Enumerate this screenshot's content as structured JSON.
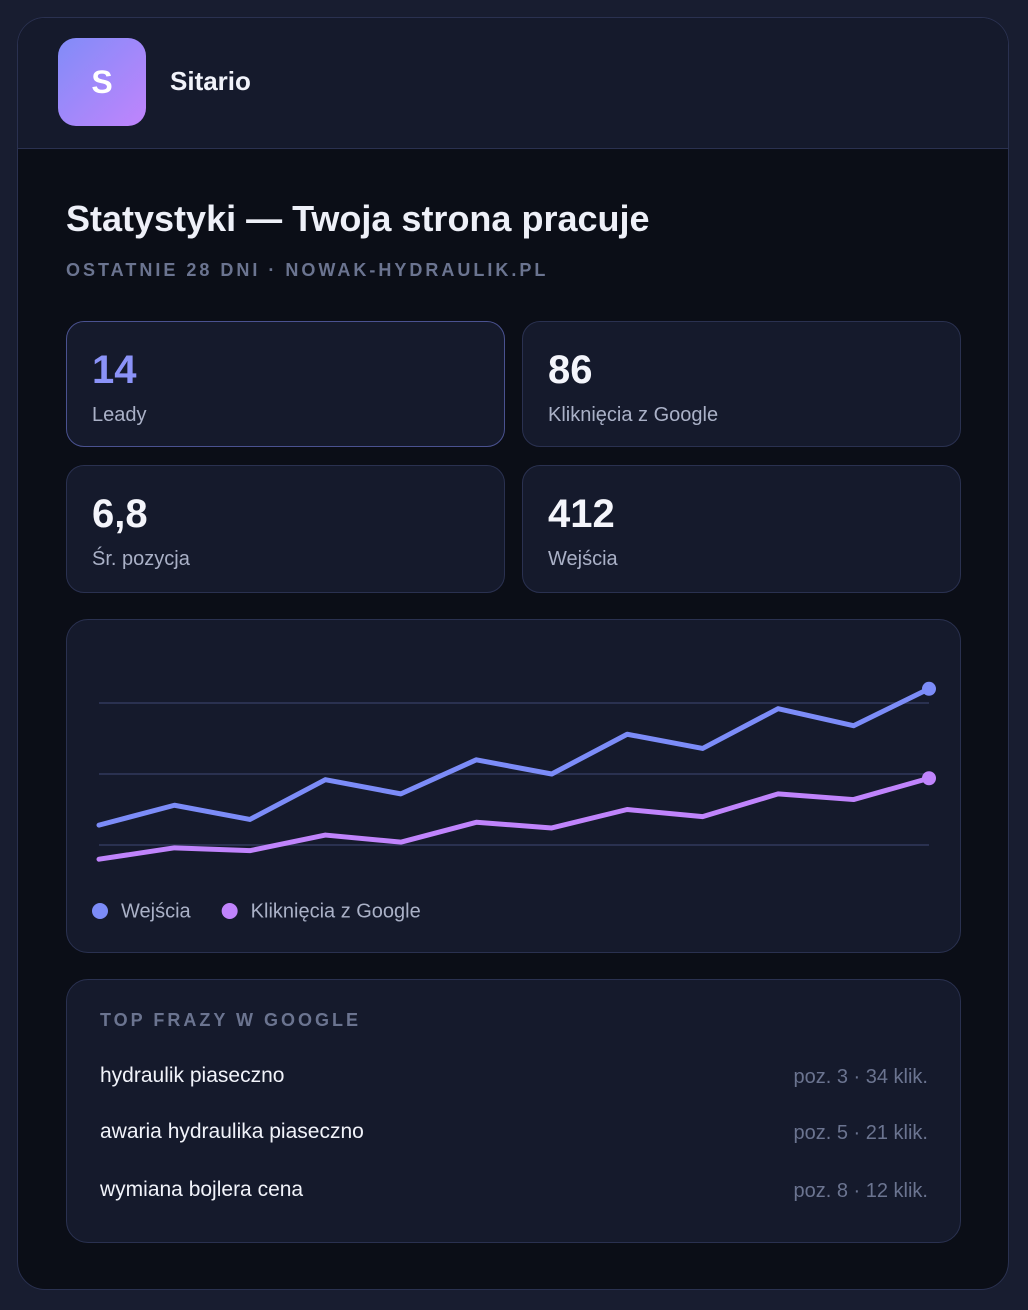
{
  "header": {
    "logo": "S",
    "brand": "Sitario"
  },
  "title": "Statystyki — Twoja strona pracuje",
  "subtitle": "OSTATNIE 28 DNI · NOWAK-HYDRAULIK.PL",
  "stats": [
    {
      "value": "14",
      "label": "Leady"
    },
    {
      "value": "86",
      "label": "Kliknięcia z Google"
    },
    {
      "value": "6,8",
      "label": "Śr. pozycja"
    },
    {
      "value": "412",
      "label": "Wejścia"
    }
  ],
  "chart_data": {
    "type": "line",
    "categories": [
      null,
      null,
      null,
      null,
      null,
      null,
      null,
      null,
      null,
      null,
      null,
      null
    ],
    "series": [
      {
        "name": "Wejścia",
        "color": "#7c8cf8",
        "values": [
          32,
          39,
          34,
          48,
          43,
          55,
          50,
          64,
          59,
          73,
          67,
          80
        ]
      },
      {
        "name": "Kliknięcia z Google",
        "color": "#c084fc",
        "values": [
          20,
          24,
          23,
          28.5,
          26,
          33,
          31,
          37.5,
          35,
          43,
          41,
          48.5
        ]
      }
    ],
    "ylim": [
      0,
      100
    ],
    "yticks": [
      25,
      50,
      75
    ],
    "grid": true
  },
  "top_phrases": {
    "title": "TOP FRAZY W GOOGLE",
    "rows": [
      {
        "phrase": "hydraulik piaseczno",
        "stats": "poz. 3 · 34 klik."
      },
      {
        "phrase": "awaria hydraulika piaseczno",
        "stats": "poz. 5 · 21 klik."
      },
      {
        "phrase": "wymiana bojlera cena",
        "stats": "poz. 8 · 12 klik."
      }
    ]
  }
}
